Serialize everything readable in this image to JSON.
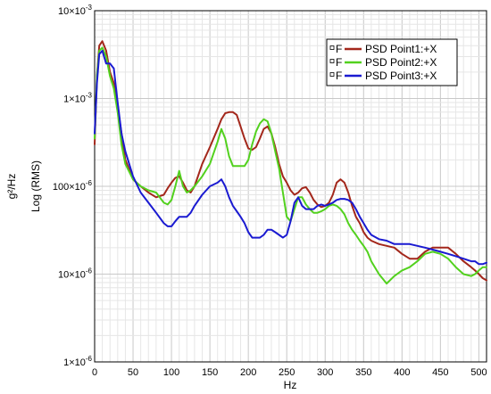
{
  "chart_data": {
    "type": "line",
    "title": "",
    "xlabel": "Hz",
    "ylabel": [
      "g²/Hz",
      "Log (RMS)"
    ],
    "xlim": [
      0,
      510
    ],
    "ylim": [
      1e-06,
      0.01
    ],
    "yscale": "log",
    "grid": true,
    "legend_position": "top-right",
    "x_ticks": [
      0,
      50,
      100,
      150,
      200,
      250,
      300,
      350,
      400,
      450,
      500
    ],
    "x_tick_labels": [
      "0",
      "50",
      "100",
      "150",
      "200",
      "250",
      "300",
      "350",
      "400",
      "450",
      "500"
    ],
    "y_ticks": [
      1e-06,
      1e-05,
      0.0001,
      0.001,
      0.01
    ],
    "y_tick_labels": [
      {
        "mantissa": "1×10",
        "exponent": "-6"
      },
      {
        "mantissa": "10×10",
        "exponent": "-6"
      },
      {
        "mantissa": "100×10",
        "exponent": "-6"
      },
      {
        "mantissa": "1×10",
        "exponent": "-3"
      },
      {
        "mantissa": "10×10",
        "exponent": "-3"
      }
    ],
    "series": [
      {
        "name": "PSD Point1:+X",
        "legend_marker": "F",
        "color": "#a3271b",
        "x": [
          0,
          3,
          6,
          10,
          15,
          20,
          25,
          30,
          35,
          40,
          50,
          60,
          70,
          80,
          90,
          95,
          100,
          105,
          110,
          115,
          120,
          125,
          130,
          140,
          150,
          160,
          165,
          170,
          175,
          180,
          185,
          190,
          195,
          200,
          205,
          210,
          215,
          220,
          225,
          230,
          235,
          240,
          245,
          250,
          255,
          260,
          265,
          270,
          275,
          280,
          285,
          290,
          295,
          300,
          305,
          310,
          315,
          320,
          325,
          330,
          335,
          340,
          345,
          350,
          355,
          360,
          370,
          380,
          390,
          400,
          410,
          420,
          430,
          440,
          450,
          460,
          470,
          480,
          490,
          495,
          500,
          505,
          510
        ],
        "values": [
          0.0003,
          0.0018,
          0.004,
          0.0045,
          0.0035,
          0.002,
          0.0015,
          0.0008,
          0.0004,
          0.0002,
          0.00012,
          0.0001,
          8.5e-05,
          7.5e-05,
          8e-05,
          9.5e-05,
          0.00011,
          0.000125,
          0.00013,
          0.00011,
          9e-05,
          8.5e-05,
          0.0001,
          0.00018,
          0.00028,
          0.00045,
          0.00058,
          0.00068,
          0.0007,
          0.0007,
          0.00065,
          0.00048,
          0.00035,
          0.00027,
          0.00026,
          0.00028,
          0.00035,
          0.00045,
          0.00048,
          0.0004,
          0.00028,
          0.00018,
          0.00013,
          0.00011,
          9e-05,
          8e-05,
          8.5e-05,
          9.5e-05,
          9.8e-05,
          8.5e-05,
          7e-05,
          6.2e-05,
          5.8e-05,
          6e-05,
          6.5e-05,
          8e-05,
          0.00011,
          0.00012,
          0.00011,
          8.5e-05,
          6e-05,
          4.5e-05,
          3.8e-05,
          3e-05,
          2.6e-05,
          2.4e-05,
          2.2e-05,
          2.1e-05,
          2e-05,
          1.7e-05,
          1.5e-05,
          1.5e-05,
          1.8e-05,
          2e-05,
          2e-05,
          2e-05,
          1.7e-05,
          1.4e-05,
          1.2e-05,
          1.1e-05,
          1e-05,
          9e-06,
          8.5e-06
        ]
      },
      {
        "name": "PSD Point2:+X",
        "legend_marker": "F",
        "color": "#52d11e",
        "x": [
          0,
          3,
          6,
          10,
          15,
          20,
          25,
          30,
          35,
          40,
          50,
          60,
          70,
          80,
          90,
          95,
          100,
          105,
          110,
          115,
          120,
          125,
          130,
          140,
          150,
          160,
          165,
          170,
          175,
          180,
          185,
          190,
          195,
          200,
          205,
          210,
          215,
          220,
          225,
          230,
          235,
          240,
          245,
          250,
          255,
          260,
          265,
          270,
          275,
          280,
          285,
          290,
          295,
          300,
          305,
          310,
          315,
          320,
          325,
          330,
          335,
          340,
          345,
          350,
          355,
          360,
          370,
          380,
          390,
          400,
          410,
          420,
          430,
          440,
          450,
          460,
          470,
          480,
          490,
          495,
          500,
          505,
          510
        ],
        "values": [
          0.00035,
          0.0018,
          0.0035,
          0.0038,
          0.003,
          0.0018,
          0.0013,
          0.0007,
          0.0003,
          0.00018,
          0.00012,
          0.0001,
          9e-05,
          8.5e-05,
          6.5e-05,
          6.2e-05,
          7e-05,
          0.0001,
          0.00015,
          0.0001,
          8.5e-05,
          9e-05,
          0.0001,
          0.00013,
          0.00018,
          0.00032,
          0.00045,
          0.00035,
          0.00022,
          0.00017,
          0.00017,
          0.00017,
          0.00017,
          0.0002,
          0.0003,
          0.00042,
          0.00052,
          0.00058,
          0.00055,
          0.0004,
          0.00025,
          0.00016,
          8.5e-05,
          4.5e-05,
          4e-05,
          5.5e-05,
          7.5e-05,
          7.5e-05,
          6.2e-05,
          5.5e-05,
          5e-05,
          5e-05,
          5.2e-05,
          5.5e-05,
          6e-05,
          6.2e-05,
          6e-05,
          5.5e-05,
          4.8e-05,
          3.8e-05,
          3.2e-05,
          2.8e-05,
          2.4e-05,
          2.1e-05,
          1.8e-05,
          1.4e-05,
          1e-05,
          7.8e-06,
          9.5e-06,
          1.1e-05,
          1.2e-05,
          1.4e-05,
          1.7e-05,
          1.8e-05,
          1.7e-05,
          1.5e-05,
          1.2e-05,
          1e-05,
          9.5e-06,
          1e-05,
          1.1e-05,
          1.2e-05,
          1.2e-05
        ]
      },
      {
        "name": "PSD Point3:+X",
        "legend_marker": "F",
        "color": "#1a1ad1",
        "x": [
          0,
          3,
          6,
          10,
          15,
          20,
          25,
          30,
          35,
          40,
          50,
          60,
          70,
          80,
          90,
          95,
          100,
          105,
          110,
          115,
          120,
          125,
          130,
          140,
          150,
          160,
          165,
          170,
          175,
          180,
          185,
          190,
          195,
          200,
          205,
          210,
          215,
          220,
          225,
          230,
          235,
          240,
          245,
          250,
          255,
          260,
          265,
          270,
          275,
          280,
          285,
          290,
          295,
          300,
          305,
          310,
          315,
          320,
          325,
          330,
          335,
          340,
          345,
          350,
          355,
          360,
          370,
          380,
          390,
          400,
          410,
          420,
          430,
          440,
          450,
          460,
          470,
          480,
          490,
          495,
          500,
          505,
          510
        ],
        "values": [
          0.0004,
          0.0015,
          0.0032,
          0.0035,
          0.0025,
          0.0025,
          0.0022,
          0.0009,
          0.0004,
          0.00025,
          0.00013,
          8.5e-05,
          6.5e-05,
          5e-05,
          3.8e-05,
          3.5e-05,
          3.5e-05,
          4e-05,
          4.5e-05,
          4.5e-05,
          4.5e-05,
          5e-05,
          6e-05,
          8e-05,
          0.0001,
          0.00011,
          0.00012,
          0.0001,
          7.5e-05,
          6e-05,
          5.2e-05,
          4.5e-05,
          3.8e-05,
          3e-05,
          2.6e-05,
          2.6e-05,
          2.6e-05,
          2.8e-05,
          3.2e-05,
          3.2e-05,
          3e-05,
          2.8e-05,
          2.6e-05,
          2.8e-05,
          4e-05,
          6.5e-05,
          7.5e-05,
          6e-05,
          5.5e-05,
          5.5e-05,
          5.5e-05,
          6e-05,
          6.2e-05,
          6e-05,
          6.2e-05,
          6.5e-05,
          7e-05,
          7.2e-05,
          7.2e-05,
          7e-05,
          6.5e-05,
          5.5e-05,
          4.5e-05,
          3.8e-05,
          3.2e-05,
          2.8e-05,
          2.5e-05,
          2.4e-05,
          2.2e-05,
          2.2e-05,
          2.2e-05,
          2.1e-05,
          2e-05,
          1.9e-05,
          1.8e-05,
          1.7e-05,
          1.6e-05,
          1.5e-05,
          1.4e-05,
          1.4e-05,
          1.3e-05,
          1.3e-05,
          1.35e-05
        ]
      }
    ]
  }
}
